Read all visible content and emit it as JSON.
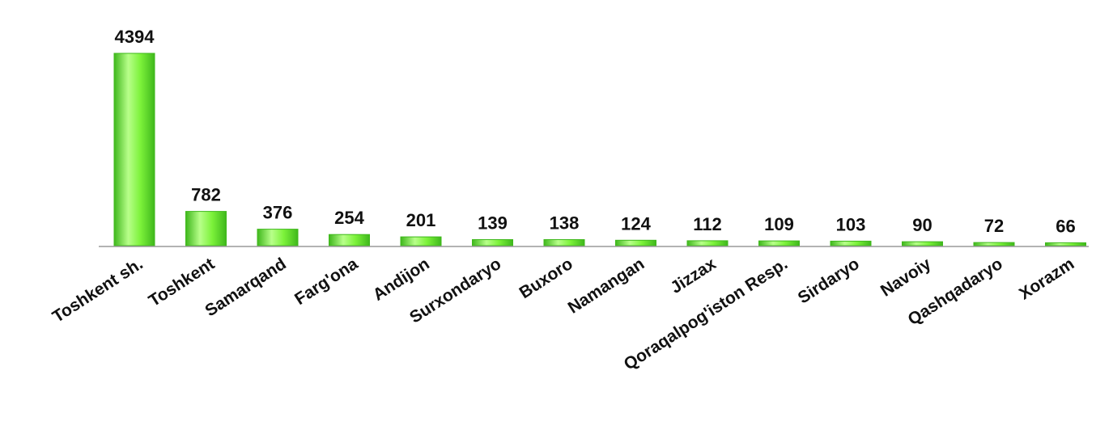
{
  "chart_data": {
    "type": "bar",
    "categories": [
      "Toshkent sh.",
      "Toshkent",
      "Samarqand",
      "Farg'ona",
      "Andijon",
      "Surxondaryo",
      "Buxoro",
      "Namangan",
      "Jizzax",
      "Qoraqalpog'iston Resp.",
      "Sirdaryo",
      "Navoiy",
      "Qashqadaryo",
      "Xorazm"
    ],
    "values": [
      4394,
      782,
      376,
      254,
      201,
      139,
      138,
      124,
      112,
      109,
      103,
      90,
      72,
      66
    ],
    "data_labels": [
      "4394",
      "782",
      "376",
      "254",
      "201",
      "139",
      "138",
      "124",
      "112",
      "109",
      "103",
      "90",
      "72",
      "66"
    ],
    "title": "",
    "xlabel": "",
    "ylabel": "",
    "ylim": [
      0,
      4394
    ],
    "grid": false,
    "legend": "none",
    "colors": {
      "bar_light": "#b8ff8a",
      "bar_mid": "#7cf23a",
      "bar_dark": "#3fb81c",
      "baseline": "#9a9a9a",
      "text": "#111111"
    }
  }
}
